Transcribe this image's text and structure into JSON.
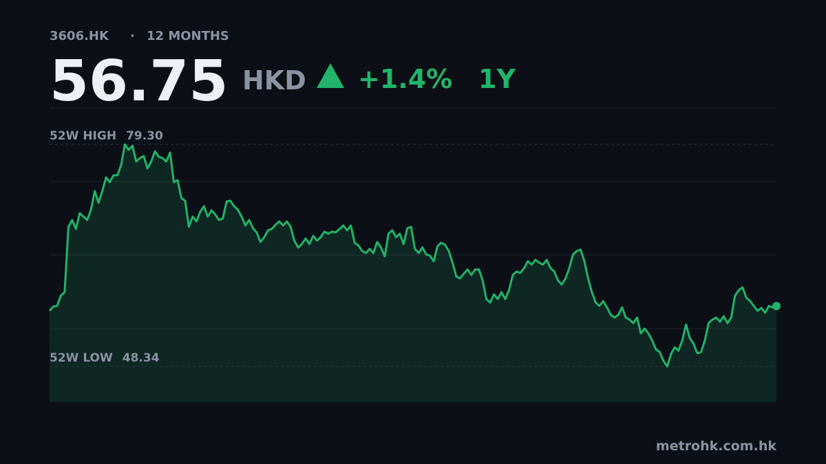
{
  "header": {
    "ticker": "3606.HK",
    "period": "12 MONTHS",
    "price": "56.75",
    "currency": "HKD",
    "change": "+1.4%",
    "range": "1Y"
  },
  "chart_data": {
    "type": "line",
    "color": "#22b46a",
    "ylim": [
      43.36,
      84.38
    ],
    "annotations": [
      {
        "label": "52W HIGH",
        "value": {
          "value": 79.3,
          "label": "79.30"
        }
      },
      {
        "label": "52W LOW",
        "value": 48.34
      }
    ],
    "values": [
      56.1,
      56.68,
      56.78,
      58.21,
      58.69,
      67.8,
      68.76,
      67.51,
      69.71,
      69.24,
      68.76,
      70.19,
      72.78,
      71.15,
      72.78,
      74.7,
      74.03,
      74.99,
      74.99,
      76.42,
      79.3,
      78.53,
      79.11,
      76.9,
      77.38,
      77.67,
      75.95,
      76.9,
      78.34,
      77.57,
      77.38,
      76.9,
      78.15,
      74.03,
      74.32,
      71.82,
      71.44,
      67.8,
      69.24,
      68.56,
      69.91,
      70.67,
      69.24,
      70.1,
      69.52,
      68.76,
      68.95,
      71.34,
      71.44,
      70.67,
      70.19,
      69.24,
      67.99,
      68.76,
      67.61,
      67.03,
      65.69,
      66.36,
      67.32,
      67.51,
      68.09,
      68.56,
      67.99,
      68.56,
      67.8,
      65.88,
      64.92,
      65.4,
      66.17,
      65.4,
      66.55,
      65.88,
      66.36,
      67.13,
      66.84,
      67.13,
      67.03,
      67.51,
      67.99,
      67.32,
      67.99,
      65.59,
      65.21,
      64.44,
      64.16,
      64.73,
      64.16,
      65.69,
      64.92,
      63.68,
      66.84,
      67.32,
      66.36,
      66.84,
      65.4,
      67.61,
      67.8,
      64.73,
      64.16,
      64.92,
      63.96,
      63.77,
      63.01,
      65.11,
      65.59,
      65.31,
      64.44,
      62.81,
      60.9,
      60.61,
      61.28,
      61.86,
      61.09,
      61.86,
      61.86,
      60.32,
      57.73,
      57.25,
      58.4,
      57.73,
      58.69,
      57.73,
      58.98,
      61.09,
      61.57,
      61.38,
      62.05,
      63.01,
      62.53,
      63.2,
      62.81,
      62.53,
      63.2,
      62.05,
      61.57,
      60.32,
      59.75,
      60.61,
      62.05,
      63.96,
      64.44,
      64.63,
      63.01,
      60.61,
      58.69,
      57.25,
      56.78,
      57.45,
      56.58,
      55.53,
      55.15,
      55.53,
      56.58,
      55.15,
      54.86,
      54.38,
      55.15,
      52.94,
      53.61,
      52.94,
      51.98,
      50.74,
      50.35,
      49.11,
      48.34,
      50.07,
      51.02,
      50.54,
      51.98,
      54.19,
      52.27,
      51.5,
      50.16,
      50.35,
      51.98,
      54.38,
      54.86,
      55.15,
      54.57,
      55.34,
      54.38,
      55.15,
      58.21,
      58.98,
      59.36,
      57.93,
      57.45,
      56.78,
      56.1,
      56.49,
      55.82,
      56.78,
      56.58,
      56.75
    ]
  },
  "footer": {
    "source": "metrohk.com.hk"
  }
}
